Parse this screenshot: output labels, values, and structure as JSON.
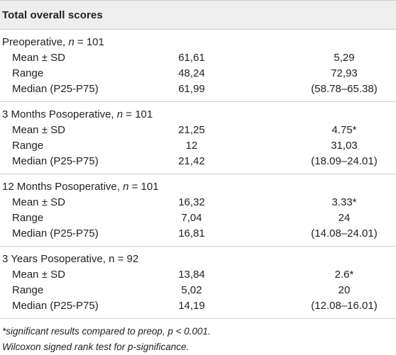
{
  "table": {
    "header": "Total overall scores",
    "sections": [
      {
        "title_prefix": "Preoperative, ",
        "title_n": "n",
        "title_suffix": " = 101",
        "rows": [
          {
            "label": "Mean ± SD",
            "c1": "61,61",
            "c2": "5,29"
          },
          {
            "label": "Range",
            "c1": "48,24",
            "c2": "72,93"
          },
          {
            "label": "Median (P25-P75)",
            "c1": "61,99",
            "c2": "(58.78–65.38)"
          }
        ]
      },
      {
        "title_prefix": "3 Months Posoperative, ",
        "title_n": "n",
        "title_suffix": " = 101",
        "rows": [
          {
            "label": "Mean ± SD",
            "c1": "21,25",
            "c2": "4.75*"
          },
          {
            "label": "Range",
            "c1": "12",
            "c2": "31,03"
          },
          {
            "label": "Median (P25-P75)",
            "c1": "21,42",
            "c2": "(18.09–24.01)"
          }
        ]
      },
      {
        "title_prefix": "12 Months Posoperative, ",
        "title_n": "n",
        "title_suffix": " = 101",
        "rows": [
          {
            "label": "Mean ± SD",
            "c1": "16,32",
            "c2": "3.33*"
          },
          {
            "label": "Range",
            "c1": "7,04",
            "c2": "24"
          },
          {
            "label": "Median (P25-P75)",
            "c1": "16,81",
            "c2": "(14.08–24.01)"
          }
        ]
      },
      {
        "title_prefix": "3 Years Posoperative, n = 92",
        "title_n": "",
        "title_suffix": "",
        "rows": [
          {
            "label": "Mean ± SD",
            "c1": "13,84",
            "c2": "2.6*"
          },
          {
            "label": "Range",
            "c1": "5,02",
            "c2": "20"
          },
          {
            "label": "Median (P25-P75)",
            "c1": "14,19",
            "c2": "(12.08–16.01)"
          }
        ]
      }
    ],
    "footnotes": [
      "*significant results compared to preop, p < 0.001.",
      "Wilcoxon signed rank test for p-significance."
    ]
  }
}
